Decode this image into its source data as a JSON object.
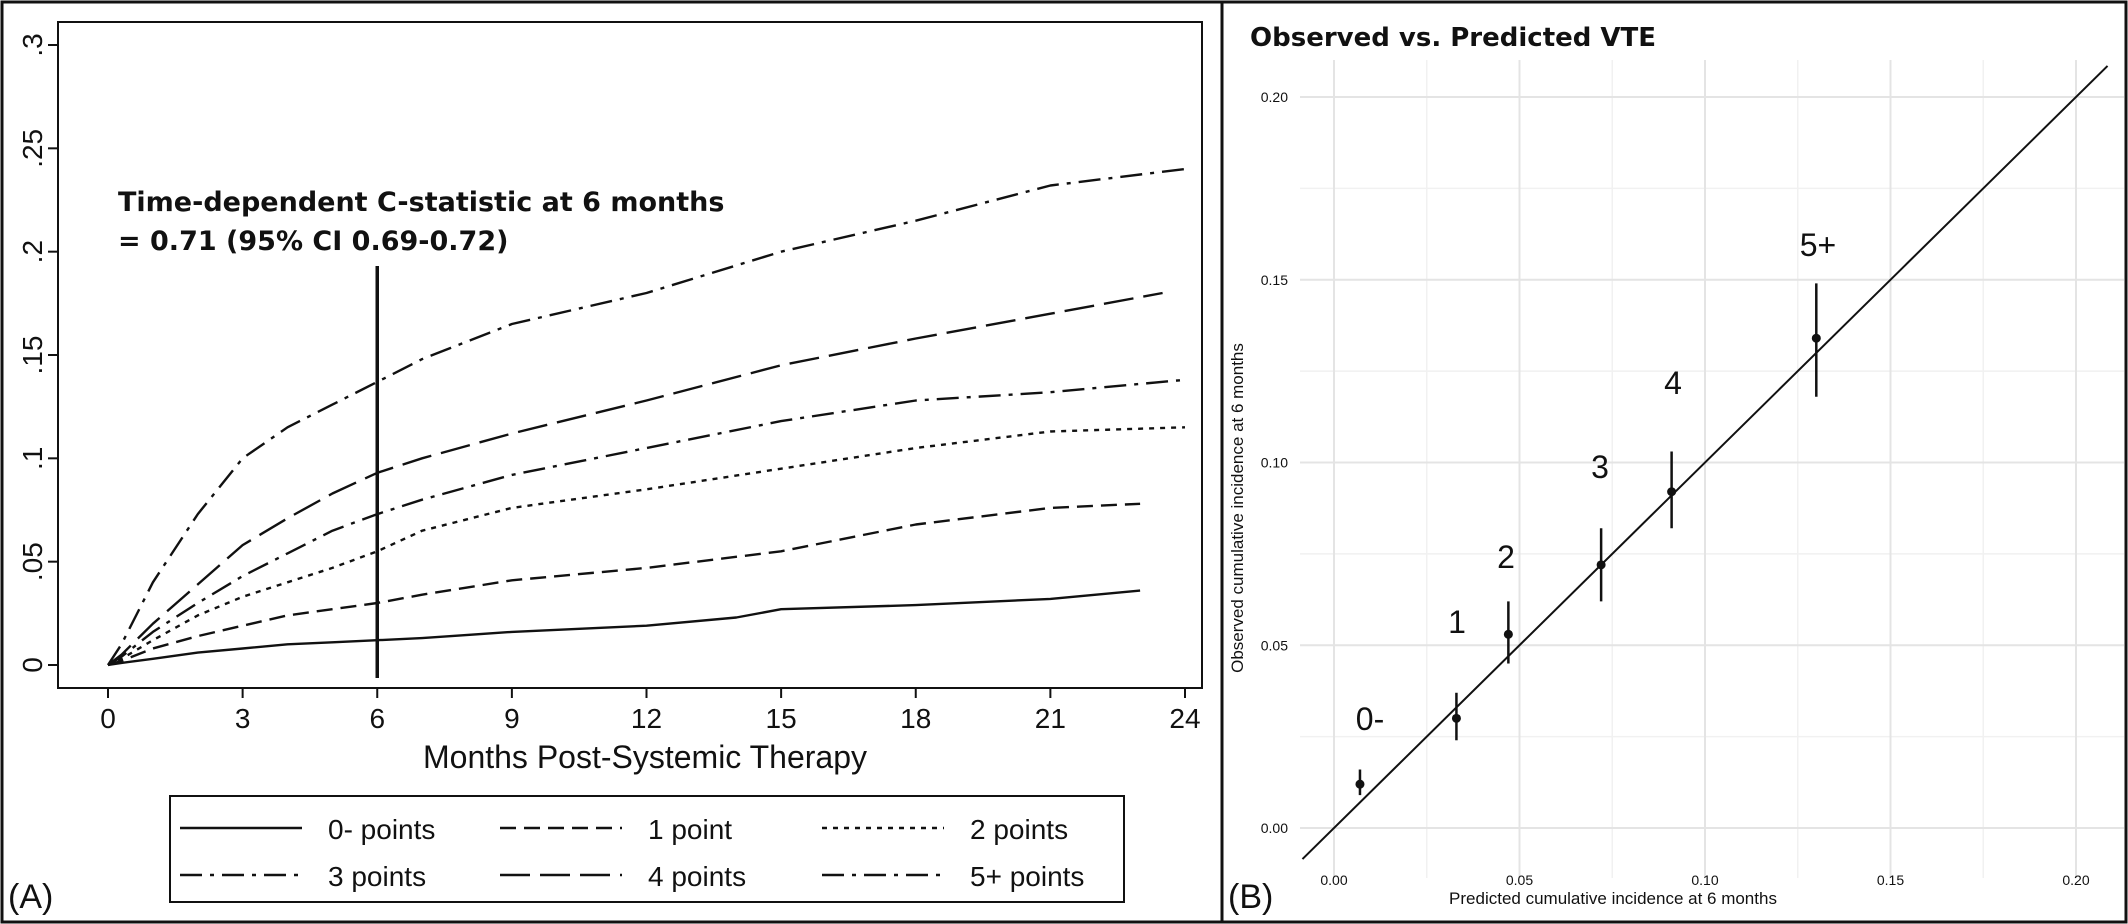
{
  "chart_data": [
    {
      "type": "line",
      "panel_label": "(A)",
      "xlabel": "Months Post-Systemic Therapy",
      "ylabel": "",
      "xlim": [
        0,
        24
      ],
      "ylim": [
        0,
        0.3
      ],
      "xticks": [
        0,
        3,
        6,
        9,
        12,
        15,
        18,
        21,
        24
      ],
      "xtick_labels": [
        "0",
        "3",
        "6",
        "9",
        "12",
        "15",
        "18",
        "21",
        "24"
      ],
      "yticks": [
        0,
        0.05,
        0.1,
        0.15,
        0.2,
        0.25,
        0.3
      ],
      "ytick_labels": [
        "0",
        ".05",
        ".1",
        ".15",
        ".2",
        ".25",
        ".3"
      ],
      "grid": false,
      "legend_position": "bottom",
      "annotation": {
        "line1": "Time-dependent C-statistic at 6 months",
        "line2": "= 0.71 (95% CI 0.69-0.72)"
      },
      "reference_line_x": 6,
      "series": [
        {
          "name": "0- points",
          "dash": "solid",
          "x": [
            0,
            0.3,
            1,
            2,
            3,
            4,
            5,
            6,
            7,
            9,
            12,
            14,
            15,
            18,
            21,
            23
          ],
          "y": [
            0,
            0.001,
            0.003,
            0.006,
            0.008,
            0.01,
            0.011,
            0.012,
            0.013,
            0.016,
            0.019,
            0.023,
            0.027,
            0.029,
            0.032,
            0.036
          ]
        },
        {
          "name": "1 point",
          "dash": "dash",
          "x": [
            0,
            0.3,
            1,
            2,
            3,
            4,
            5,
            6,
            7,
            9,
            12,
            15,
            18,
            21,
            23
          ],
          "y": [
            0,
            0.002,
            0.008,
            0.014,
            0.019,
            0.024,
            0.027,
            0.03,
            0.034,
            0.041,
            0.047,
            0.055,
            0.068,
            0.076,
            0.078
          ]
        },
        {
          "name": "2 points",
          "dash": "dot",
          "x": [
            0,
            0.3,
            1,
            2,
            3,
            4,
            5,
            6,
            7,
            9,
            12,
            15,
            18,
            21,
            24
          ],
          "y": [
            0,
            0.003,
            0.012,
            0.024,
            0.033,
            0.04,
            0.047,
            0.055,
            0.065,
            0.076,
            0.085,
            0.095,
            0.105,
            0.113,
            0.115
          ]
        },
        {
          "name": "3 points",
          "dash": "dashdot",
          "x": [
            0,
            0.3,
            1,
            2,
            3,
            4,
            5,
            6,
            7,
            9,
            12,
            15,
            18,
            21,
            24
          ],
          "y": [
            0,
            0.004,
            0.016,
            0.03,
            0.043,
            0.054,
            0.065,
            0.073,
            0.08,
            0.092,
            0.105,
            0.118,
            0.128,
            0.132,
            0.138
          ]
        },
        {
          "name": "4 points",
          "dash": "longdash",
          "x": [
            0,
            0.3,
            1,
            2,
            3,
            4,
            5,
            6,
            7,
            9,
            12,
            15,
            18,
            21,
            23.5
          ],
          "y": [
            0,
            0.005,
            0.02,
            0.039,
            0.058,
            0.071,
            0.083,
            0.093,
            0.1,
            0.112,
            0.128,
            0.145,
            0.158,
            0.17,
            0.18
          ]
        },
        {
          "name": "5+ points",
          "dash": "dashdot",
          "x": [
            0,
            0.3,
            1,
            2,
            3,
            4,
            5,
            6,
            7,
            9,
            12,
            15,
            18,
            21,
            24
          ],
          "y": [
            0,
            0.01,
            0.04,
            0.073,
            0.1,
            0.115,
            0.126,
            0.137,
            0.148,
            0.165,
            0.18,
            0.2,
            0.215,
            0.232,
            0.24
          ]
        }
      ]
    },
    {
      "type": "scatter",
      "panel_label": "(B)",
      "title": "Observed vs. Predicted VTE",
      "xlabel": "Predicted cumulative incidence at 6 months",
      "ylabel": "Observed cumulative incidence at 6 months",
      "xlim": [
        -0.01,
        0.21
      ],
      "ylim": [
        -0.01,
        0.205
      ],
      "xticks": [
        0,
        0.05,
        0.1,
        0.15,
        0.2
      ],
      "xtick_labels": [
        "0.00",
        "0.05",
        "0.10",
        "0.15",
        "0.20"
      ],
      "yticks": [
        0,
        0.05,
        0.1,
        0.15,
        0.2
      ],
      "ytick_labels": [
        "0.00",
        "0.05",
        "0.10",
        "0.15",
        "0.20"
      ],
      "grid": true,
      "reference_line": "y = x",
      "points": [
        {
          "label": "0-",
          "x": 0.007,
          "y": 0.012,
          "lower": 0.009,
          "upper": 0.016
        },
        {
          "label": "1",
          "x": 0.033,
          "y": 0.03,
          "lower": 0.024,
          "upper": 0.037
        },
        {
          "label": "2",
          "x": 0.047,
          "y": 0.053,
          "lower": 0.045,
          "upper": 0.062
        },
        {
          "label": "3",
          "x": 0.072,
          "y": 0.072,
          "lower": 0.062,
          "upper": 0.082
        },
        {
          "label": "4",
          "x": 0.091,
          "y": 0.092,
          "lower": 0.082,
          "upper": 0.103
        },
        {
          "label": "5+",
          "x": 0.13,
          "y": 0.134,
          "lower": 0.118,
          "upper": 0.149
        }
      ]
    }
  ]
}
